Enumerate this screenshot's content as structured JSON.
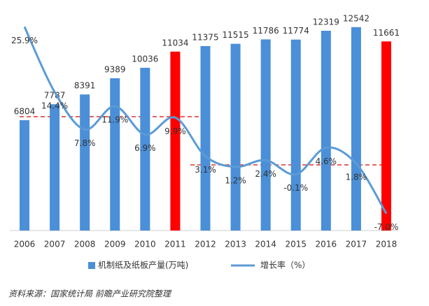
{
  "chart_data": {
    "type": "bar-line",
    "categories": [
      "2006",
      "2007",
      "2008",
      "2009",
      "2010",
      "2011",
      "2012",
      "2013",
      "2014",
      "2015",
      "2016",
      "2017",
      "2018"
    ],
    "series": [
      {
        "name": "机制纸及纸板产量(万吨)",
        "type": "bar",
        "color": "#4a8fd8",
        "colors": [
          "#4a8fd8",
          "#4a8fd8",
          "#4a8fd8",
          "#4a8fd8",
          "#4a8fd8",
          "#ff0000",
          "#4a8fd8",
          "#4a8fd8",
          "#4a8fd8",
          "#4a8fd8",
          "#4a8fd8",
          "#4a8fd8",
          "#ff0000"
        ],
        "values": [
          6804,
          7787,
          8391,
          9389,
          10036,
          11034,
          11375,
          11515,
          11786,
          11774,
          12319,
          12542,
          11661
        ]
      },
      {
        "name": "增长率（%）",
        "type": "line",
        "axis": "y2",
        "color": "#5b9bd5",
        "values": [
          25.9,
          14.4,
          7.8,
          11.9,
          6.9,
          9.9,
          3.1,
          1.2,
          2.4,
          -0.1,
          4.6,
          1.8,
          -7.0
        ],
        "value_labels": [
          "25.9%",
          "14.4%",
          "7.8%",
          "11.9%",
          "6.9%",
          "9.9%",
          "3.1%",
          "1.2%",
          "2.4%",
          "-0.1%",
          "4.6%",
          "1.8%",
          "-7.0%"
        ]
      }
    ],
    "ylim": [
      0,
      14000
    ],
    "y2lim": [
      -10,
      30
    ],
    "source": "资料来源：国家统计局 前瞻产业研究院整理"
  }
}
